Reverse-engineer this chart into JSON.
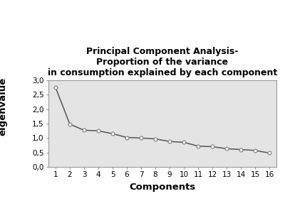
{
  "title_line1": "Principal Component Analysis-",
  "title_line2": "Proportion of the variance",
  "title_line3": "in consumption explained by each component",
  "xlabel": "Components",
  "ylabel": "eigenvalue",
  "x_values": [
    1,
    2,
    3,
    4,
    5,
    6,
    7,
    8,
    9,
    10,
    11,
    12,
    13,
    14,
    15,
    16
  ],
  "y_values": [
    2.75,
    1.48,
    1.27,
    1.25,
    1.15,
    1.02,
    1.0,
    0.97,
    0.88,
    0.85,
    0.72,
    0.7,
    0.63,
    0.6,
    0.57,
    0.48
  ],
  "ylim": [
    0.0,
    3.0
  ],
  "yticks": [
    0.0,
    0.5,
    1.0,
    1.5,
    2.0,
    2.5,
    3.0
  ],
  "ytick_labels": [
    "0,0",
    "0,5",
    "1,0",
    "1,5",
    "2,0",
    "2,5",
    "3,0"
  ],
  "line_color": "#555555",
  "marker_color": "#888888",
  "bg_color": "#e4e4e4",
  "title_fontsize": 9.0,
  "axis_label_fontsize": 9.5,
  "tick_fontsize": 7.5
}
